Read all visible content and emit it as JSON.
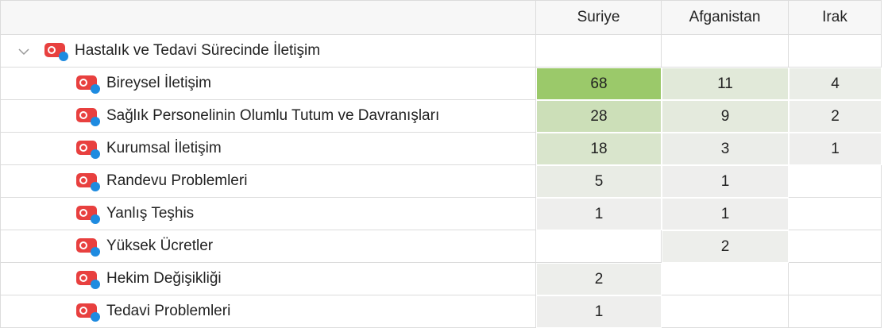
{
  "table": {
    "columns": [
      "Suriye",
      "Afganistan",
      "Irak"
    ],
    "group": "Hastalık ve Tedavi Sürecinde İletişim",
    "rows": [
      {
        "label": "Bireysel İletişim",
        "values": [
          68,
          11,
          4
        ]
      },
      {
        "label": "Sağlık Personelinin Olumlu Tutum ve Davranışları",
        "values": [
          28,
          9,
          2
        ]
      },
      {
        "label": "Kurumsal İletişim",
        "values": [
          18,
          3,
          1
        ]
      },
      {
        "label": "Randevu Problemleri",
        "values": [
          5,
          1,
          null
        ]
      },
      {
        "label": "Yanlış Teşhis",
        "values": [
          1,
          1,
          null
        ]
      },
      {
        "label": "Yüksek Ücretler",
        "values": [
          null,
          2,
          null
        ]
      },
      {
        "label": "Hekim Değişikliği",
        "values": [
          2,
          null,
          null
        ]
      },
      {
        "label": "Tedavi Problemleri",
        "values": [
          1,
          null,
          null
        ]
      }
    ]
  }
}
